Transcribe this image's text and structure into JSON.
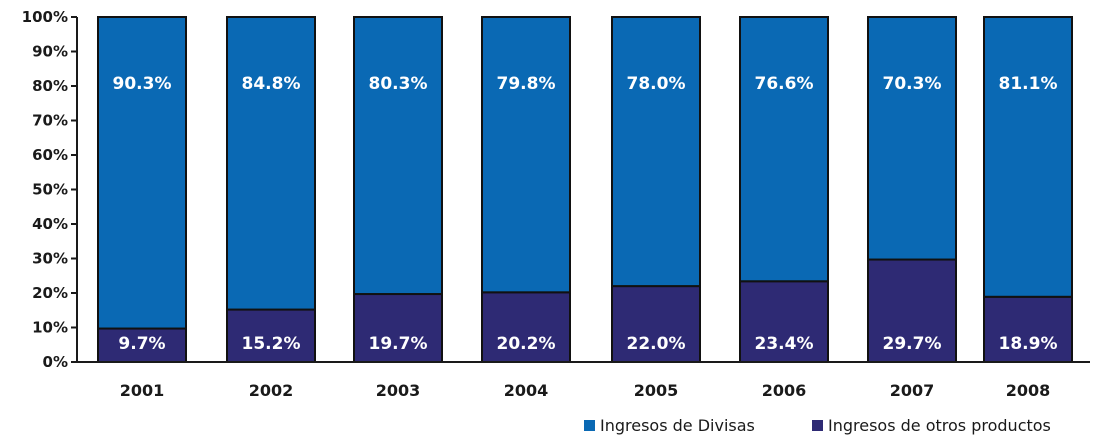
{
  "chart_data": {
    "type": "bar",
    "stacked": true,
    "categories": [
      "2001",
      "2002",
      "2003",
      "2004",
      "2005",
      "2006",
      "2007",
      "2008"
    ],
    "series": [
      {
        "name": "Ingresos de otros productos",
        "values": [
          9.7,
          15.2,
          19.7,
          20.2,
          22.0,
          23.4,
          29.7,
          18.9
        ],
        "labels": [
          "9.7%",
          "15.2%",
          "19.7%",
          "20.2%",
          "22.0%",
          "23.4%",
          "29.7%",
          "18.9%"
        ],
        "color": "#2e2a74"
      },
      {
        "name": "Ingresos de Divisas",
        "values": [
          90.3,
          84.8,
          80.3,
          79.8,
          78.0,
          76.6,
          70.3,
          81.1
        ],
        "labels": [
          "90.3%",
          "84.8%",
          "80.3%",
          "79.8%",
          "78.0%",
          "76.6%",
          "70.3%",
          "81.1%"
        ],
        "color": "#0a69b4"
      }
    ],
    "ylim": [
      0,
      100
    ],
    "yticks": [
      "0%",
      "10%",
      "20%",
      "30%",
      "40%",
      "50%",
      "60%",
      "70%",
      "80%",
      "90%",
      "100%"
    ],
    "title": "",
    "xlabel": "",
    "ylabel": "",
    "grid": false,
    "legend_position": "bottom-right",
    "legend": [
      {
        "name": "Ingresos de Divisas",
        "color": "#0a69b4"
      },
      {
        "name": "Ingresos de otros productos",
        "color": "#2e2a74"
      }
    ]
  }
}
